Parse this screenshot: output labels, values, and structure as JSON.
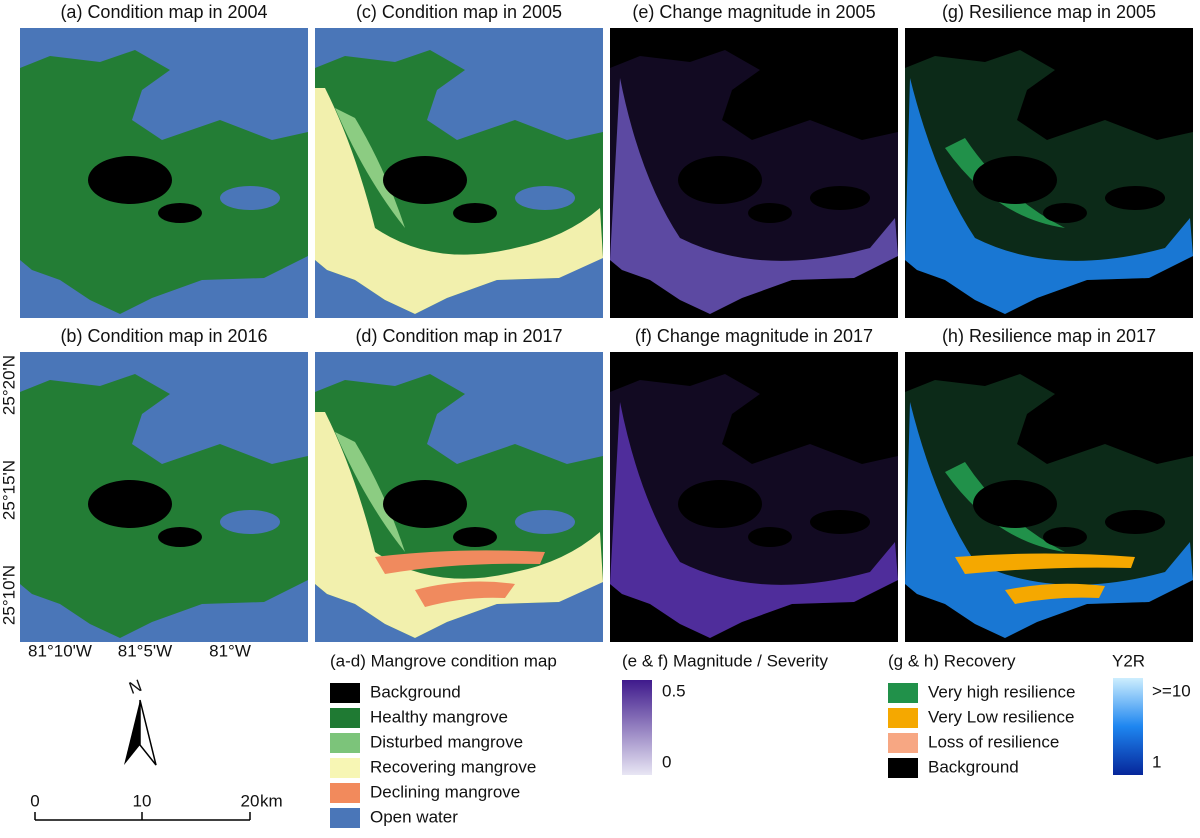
{
  "panels": [
    {
      "title": "(a) Condition map in 2004"
    },
    {
      "title": "(c) Condition map in 2005"
    },
    {
      "title": "(e) Change magnitude in 2005"
    },
    {
      "title": "(g) Resilience map in 2005"
    },
    {
      "title": "(b) Condition map in 2016"
    },
    {
      "title": "(d) Condition map in 2017"
    },
    {
      "title": "(f) Change magnitude in 2017"
    },
    {
      "title": "(h) Resilience map in 2017"
    }
  ],
  "latitude_labels": [
    "25°20'N",
    "25°15'N",
    "25°10'N"
  ],
  "longitude_labels": [
    "81°10'W",
    "81°5'W",
    "81°W"
  ],
  "north_arrow": "N",
  "scale_bar": {
    "labels": [
      "0",
      "10",
      "20"
    ],
    "unit": "km"
  },
  "condition_legend": {
    "title": "(a-d) Mangrove condition map",
    "items": [
      {
        "label": "Background",
        "color": "#000000"
      },
      {
        "label": "Healthy mangrove",
        "color": "#1f7a33"
      },
      {
        "label": "Disturbed mangrove",
        "color": "#7cc47a"
      },
      {
        "label": "Recovering mangrove",
        "color": "#f7f6b4"
      },
      {
        "label": "Declining mangrove",
        "color": "#f28a5c"
      },
      {
        "label": "Open water",
        "color": "#4a76b8"
      }
    ]
  },
  "magnitude_legend": {
    "title": "(e & f) Magnitude / Severity",
    "max_label": "0.5",
    "min_label": "0"
  },
  "recovery_legend": {
    "title": "(g & h) Recovery",
    "items": [
      {
        "label": "Very high resilience",
        "color": "#21914a"
      },
      {
        "label": "Very Low resilience",
        "color": "#f5a800"
      },
      {
        "label": "Loss of resilience",
        "color": "#f7a783"
      },
      {
        "label": "Background",
        "color": "#000000"
      }
    ]
  },
  "y2r_legend": {
    "title": "Y2R",
    "max_label": ">=10",
    "min_label": "1"
  }
}
